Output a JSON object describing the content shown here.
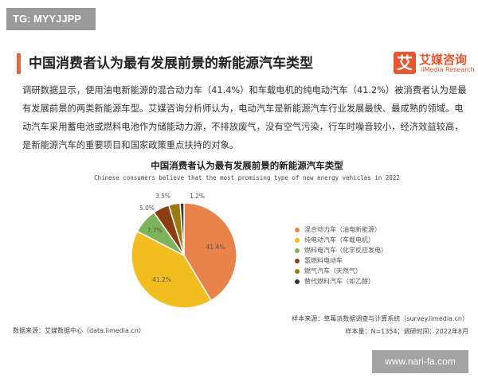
{
  "watermark_top": "TG: MYYJJPP",
  "header": {
    "title": "中国消费者认为最有发展前景的新能源汽车类型",
    "logo_cn": "艾媒咨询",
    "logo_en": "iiMedia Research",
    "logo_mark": "艾"
  },
  "paragraph": "调研数据显示，使用油电新能源的混合动力车（41.4%）和车载电机的纯电动汽车（41.2%）被消费者认为是最有发展前景的两类新能源车型。艾媒咨询分析师认为，电动汽车是新能源汽车行业发展最快、最成熟的领域。电动汽车采用蓄电池或燃料电池作为储能动力源，不排放废气，没有空气污染，行车时噪音较小，经济效益较高，是新能源汽车的重要项目和国家政策重点扶持的对象。",
  "chart_data": {
    "type": "pie",
    "title": "中国消费者认为最有发展前景的新能源汽车类型",
    "subtitle": "Chinese consumers believe that the most promising type of new energy vehicles in 2022",
    "categories": [
      "混合动力车（油电新能源）",
      "纯电动汽车（车载电机）",
      "燃料电汽车（化学反应发电）",
      "氢燃料电动车",
      "燃气汽车（天然气）",
      "替代燃料汽车（如乙醇）"
    ],
    "values": [
      41.4,
      41.2,
      7.7,
      5.0,
      3.5,
      1.2
    ],
    "labels": [
      "41.4%",
      "41.2%",
      "7.7%",
      "5.0%",
      "3.5%",
      "1.2%"
    ],
    "colors": [
      "#e8834a",
      "#f2bd1f",
      "#7db35a",
      "#8a3f12",
      "#9b7a12",
      "#2f3a2a"
    ],
    "legend": "right"
  },
  "footer": {
    "source_left": "数据来源：艾媒数据中心（data.iimedia.cn）",
    "sample_source": "样本来源：草莓派数据调查与计算系统（survey.iimedia.cn）",
    "sample_size": "样本量：N=1354；调研时间：2022年8月"
  },
  "watermark_bottom": "www.nari-fa.com"
}
